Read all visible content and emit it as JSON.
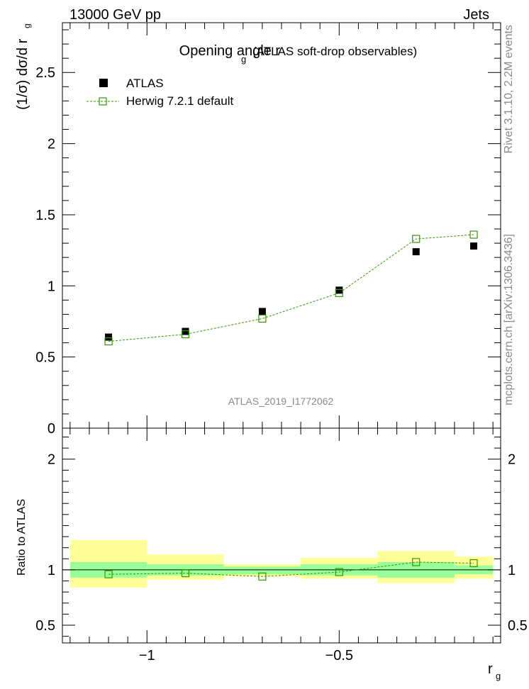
{
  "header": {
    "left": "13000 GeV pp",
    "right": "Jets"
  },
  "side_text": {
    "rivet": "Rivet 3.1.10,  2.2M events",
    "mcplots": "mcplots.cern.ch [arXiv:1306.3436]"
  },
  "colors": {
    "data": "#000000",
    "mc": "#339900",
    "band_inner": "#99ff99",
    "band_outer": "#ffff99",
    "watermark": "#8a8a8a"
  },
  "chart_data": [
    {
      "type": "scatter",
      "title": "Opening angle r",
      "title_sub": "g",
      "title_suffix": "(ATLAS soft-drop observables)",
      "ylabel": "(1/σ) dσ/d r",
      "ylabel_sub": "g",
      "analysis_label": "ATLAS_2019_I1772062",
      "xlim": [
        -1.22,
        -0.08
      ],
      "ylim": [
        0,
        2.85
      ],
      "yticks": [
        0,
        0.5,
        1,
        1.5,
        2,
        2.5
      ],
      "ytick_labels": [
        "0",
        "0.5",
        "1",
        "1.5",
        "2",
        "2.5"
      ],
      "legend": {
        "position": "top-left",
        "data_label": "ATLAS",
        "mc_label": "Herwig 7.2.1 default"
      },
      "bins": [
        [
          -1.2,
          -1.0
        ],
        [
          -1.0,
          -0.8
        ],
        [
          -0.8,
          -0.6
        ],
        [
          -0.6,
          -0.4
        ],
        [
          -0.4,
          -0.2
        ],
        [
          -0.2,
          -0.1
        ]
      ],
      "series": [
        {
          "name": "ATLAS",
          "x": [
            -1.1,
            -0.9,
            -0.7,
            -0.5,
            -0.3,
            -0.15
          ],
          "y": [
            0.64,
            0.68,
            0.82,
            0.97,
            1.24,
            1.28
          ]
        },
        {
          "name": "Herwig 7.2.1 default",
          "x": [
            -1.1,
            -0.9,
            -0.7,
            -0.5,
            -0.3,
            -0.15
          ],
          "y": [
            0.61,
            0.66,
            0.77,
            0.95,
            1.33,
            1.36
          ]
        }
      ]
    },
    {
      "type": "scatter",
      "ylabel": "Ratio to ATLAS",
      "xlabel": "r",
      "xlabel_sub": "g",
      "xlim": [
        -1.22,
        -0.08
      ],
      "ylim": [
        0.34,
        2.28
      ],
      "xticks": [
        -1,
        -0.5
      ],
      "xtick_labels": [
        "−1",
        "−0.5"
      ],
      "yticks": [
        0.5,
        1,
        2
      ],
      "ytick_labels": [
        "0.5",
        "1",
        "2"
      ],
      "bins": [
        [
          -1.2,
          -1.0
        ],
        [
          -1.0,
          -0.8
        ],
        [
          -0.8,
          -0.6
        ],
        [
          -0.6,
          -0.4
        ],
        [
          -0.4,
          -0.2
        ],
        [
          -0.2,
          -0.1
        ]
      ],
      "band_inner": [
        [
          0.93,
          1.07
        ],
        [
          0.95,
          1.05
        ],
        [
          0.96,
          1.03
        ],
        [
          0.95,
          1.05
        ],
        [
          0.93,
          1.07
        ],
        [
          0.96,
          1.04
        ]
      ],
      "band_outer": [
        [
          0.84,
          1.27
        ],
        [
          0.91,
          1.14
        ],
        [
          0.94,
          1.05
        ],
        [
          0.92,
          1.11
        ],
        [
          0.88,
          1.17
        ],
        [
          0.92,
          1.12
        ]
      ],
      "ratio": {
        "x": [
          -1.1,
          -0.9,
          -0.7,
          -0.5,
          -0.3,
          -0.15
        ],
        "y": [
          0.96,
          0.97,
          0.94,
          0.98,
          1.07,
          1.06
        ]
      }
    }
  ]
}
